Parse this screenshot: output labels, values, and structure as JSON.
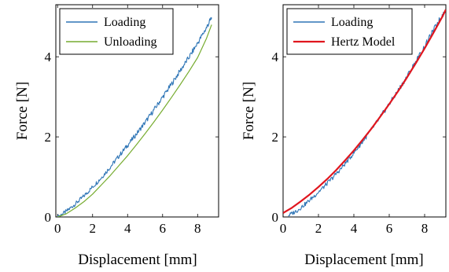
{
  "chart_data": [
    {
      "type": "line",
      "panel": "left",
      "xlabel": "Displacement [mm]",
      "ylabel": "Force [N]",
      "xlim": [
        -0.1,
        9.2
      ],
      "ylim": [
        0,
        5.3
      ],
      "xticks": [
        "0",
        "2",
        "4",
        "6",
        "8"
      ],
      "yticks": [
        "0",
        "2",
        "4"
      ],
      "legend_position": "top-left",
      "series": [
        {
          "name": "Loading",
          "color": "#2e75b6",
          "noisy": true,
          "x": [
            0,
            0.5,
            1,
            1.5,
            2,
            2.5,
            3,
            3.5,
            4,
            4.5,
            5,
            5.5,
            6,
            6.5,
            7,
            7.5,
            8,
            8.5,
            8.8
          ],
          "y": [
            0,
            0.14,
            0.32,
            0.52,
            0.75,
            0.98,
            1.24,
            1.52,
            1.79,
            2.07,
            2.36,
            2.67,
            2.99,
            3.31,
            3.65,
            3.98,
            4.34,
            4.72,
            4.98
          ]
        },
        {
          "name": "Unloading",
          "color": "#77ac30",
          "noisy": false,
          "x": [
            0,
            0.5,
            1,
            1.5,
            2,
            2.5,
            3,
            3.5,
            4,
            4.5,
            5,
            5.5,
            6,
            6.5,
            7,
            7.5,
            8,
            8.5,
            8.8
          ],
          "y": [
            0,
            0.08,
            0.22,
            0.38,
            0.57,
            0.8,
            1.03,
            1.28,
            1.53,
            1.8,
            2.08,
            2.37,
            2.67,
            2.98,
            3.3,
            3.63,
            3.98,
            4.45,
            4.8
          ]
        }
      ]
    },
    {
      "type": "line",
      "panel": "right",
      "xlabel": "Displacement [mm]",
      "ylabel": "Force [N]",
      "xlim": [
        0,
        9.2
      ],
      "ylim": [
        0,
        5.3
      ],
      "xticks": [
        "0",
        "2",
        "4",
        "6",
        "8"
      ],
      "yticks": [
        "0",
        "2",
        "4"
      ],
      "legend_position": "top-left",
      "series": [
        {
          "name": "Loading",
          "color": "#2e75b6",
          "noisy": true,
          "x": [
            0.3,
            0.8,
            1.3,
            1.8,
            2.3,
            2.8,
            3.3,
            3.8,
            4.3,
            4.8,
            5.3,
            5.8,
            6.3,
            6.8,
            7.3,
            7.8,
            8.3,
            8.8,
            9.1
          ],
          "y": [
            0.04,
            0.16,
            0.34,
            0.54,
            0.75,
            0.98,
            1.22,
            1.49,
            1.77,
            2.06,
            2.37,
            2.69,
            3.02,
            3.36,
            3.73,
            4.1,
            4.5,
            4.9,
            5.1
          ]
        },
        {
          "name": "Hertz Model",
          "color": "#e0161e",
          "noisy": false,
          "x": [
            0,
            0.5,
            1,
            1.5,
            2,
            2.5,
            3,
            3.5,
            4,
            4.5,
            5,
            5.5,
            6,
            6.5,
            7,
            7.5,
            8,
            8.5,
            9,
            9.2
          ],
          "y": [
            0.1,
            0.23,
            0.39,
            0.56,
            0.75,
            0.95,
            1.17,
            1.41,
            1.66,
            1.93,
            2.21,
            2.51,
            2.82,
            3.14,
            3.48,
            3.84,
            4.21,
            4.6,
            5.0,
            5.18
          ]
        }
      ]
    }
  ]
}
